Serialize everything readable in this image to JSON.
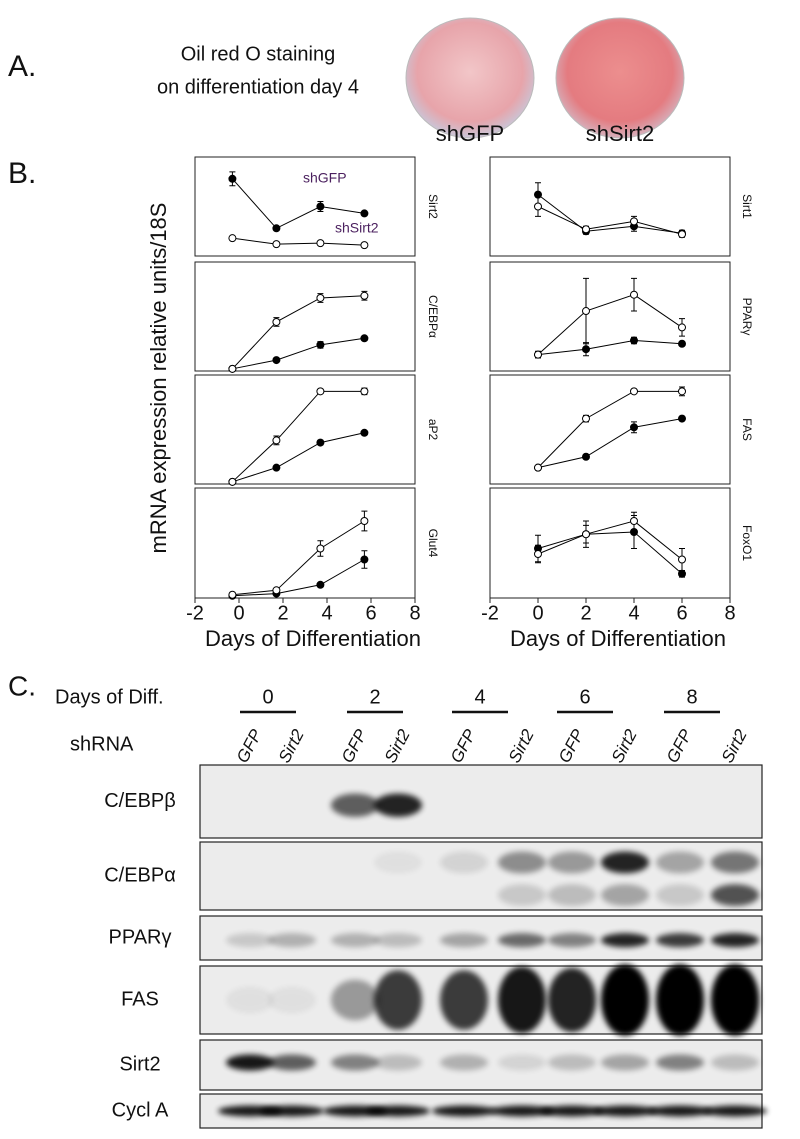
{
  "panel_a": {
    "letter": "A.",
    "caption_line1": "Oil red O staining",
    "caption_line2": "on differentiation day 4",
    "dishes": [
      "shGFP",
      "shSirt2"
    ]
  },
  "panel_b": {
    "letter": "B.",
    "y_label": "mRNA expression relative units/18S"
  },
  "chart_data": [
    {
      "type": "line",
      "title": "Sirt2",
      "x": [
        -0.3,
        1.7,
        3.7,
        5.7
      ],
      "xlim": [
        -2,
        8
      ],
      "ylim": [
        0,
        1
      ],
      "series": [
        {
          "name": "shGFP",
          "color": "#000000",
          "fill": "#000000",
          "values": [
            0.78,
            0.28,
            0.5,
            0.43
          ],
          "errors": [
            0.07,
            0.02,
            0.05,
            0.02
          ]
        },
        {
          "name": "shSirt2",
          "color": "#000000",
          "fill": "#ffffff",
          "values": [
            0.18,
            0.12,
            0.13,
            0.11
          ],
          "errors": [
            0.01,
            0.01,
            0.01,
            0.01
          ]
        }
      ]
    },
    {
      "type": "line",
      "title": "C/EBPα",
      "x": [
        -0.3,
        1.7,
        3.7,
        5.7
      ],
      "xlim": [
        -2,
        8
      ],
      "ylim": [
        0,
        1
      ],
      "series": [
        {
          "color": "#000000",
          "fill": "#000000",
          "values": [
            0.02,
            0.1,
            0.24,
            0.3
          ],
          "errors": [
            0.01,
            0.01,
            0.03,
            0.02
          ]
        },
        {
          "color": "#000000",
          "fill": "#ffffff",
          "values": [
            0.02,
            0.45,
            0.67,
            0.69
          ],
          "errors": [
            0.01,
            0.04,
            0.04,
            0.04
          ]
        }
      ]
    },
    {
      "type": "line",
      "title": "aP2",
      "x": [
        -0.3,
        1.7,
        3.7,
        5.7
      ],
      "xlim": [
        -2,
        8
      ],
      "ylim": [
        0,
        1
      ],
      "series": [
        {
          "color": "#000000",
          "fill": "#000000",
          "values": [
            0.02,
            0.15,
            0.38,
            0.47
          ],
          "errors": [
            0.01,
            0.01,
            0.02,
            0.02
          ]
        },
        {
          "color": "#000000",
          "fill": "#ffffff",
          "values": [
            0.02,
            0.4,
            0.85,
            0.85
          ],
          "errors": [
            0.01,
            0.04,
            0.02,
            0.03
          ]
        }
      ]
    },
    {
      "type": "line",
      "title": "Glut4",
      "x": [
        -0.3,
        1.7,
        3.7,
        5.7
      ],
      "xlim": [
        -2,
        8
      ],
      "ylim": [
        0,
        1
      ],
      "xticks": [
        -2,
        0,
        2,
        4,
        6,
        8
      ],
      "x_label": "Days of Differentiation",
      "series": [
        {
          "color": "#000000",
          "fill": "#000000",
          "values": [
            0.02,
            0.04,
            0.12,
            0.35
          ],
          "errors": [
            0.01,
            0.01,
            0.02,
            0.08
          ]
        },
        {
          "color": "#000000",
          "fill": "#ffffff",
          "values": [
            0.03,
            0.07,
            0.45,
            0.7
          ],
          "errors": [
            0.01,
            0.02,
            0.07,
            0.09
          ]
        }
      ]
    },
    {
      "type": "line",
      "title": "Sirt1",
      "x": [
        0,
        2,
        4,
        6
      ],
      "xlim": [
        -2,
        8
      ],
      "ylim": [
        0,
        1
      ],
      "series": [
        {
          "color": "#000000",
          "fill": "#000000",
          "values": [
            0.62,
            0.25,
            0.3,
            0.23
          ],
          "errors": [
            0.12,
            0.03,
            0.05,
            0.03
          ]
        },
        {
          "color": "#000000",
          "fill": "#ffffff",
          "values": [
            0.5,
            0.27,
            0.35,
            0.22
          ],
          "errors": [
            0.1,
            0.03,
            0.05,
            0.03
          ]
        }
      ]
    },
    {
      "type": "line",
      "title": "PPARγ",
      "x": [
        0,
        2,
        4,
        6
      ],
      "xlim": [
        -2,
        8
      ],
      "ylim": [
        0,
        1
      ],
      "series": [
        {
          "color": "#000000",
          "fill": "#000000",
          "values": [
            0.15,
            0.2,
            0.28,
            0.25
          ],
          "errors": [
            0.03,
            0.06,
            0.03,
            0.02
          ]
        },
        {
          "color": "#000000",
          "fill": "#ffffff",
          "values": [
            0.15,
            0.55,
            0.7,
            0.4
          ],
          "errors": [
            0.03,
            0.3,
            0.15,
            0.08
          ]
        }
      ]
    },
    {
      "type": "line",
      "title": "FAS",
      "x": [
        0,
        2,
        4,
        6
      ],
      "xlim": [
        -2,
        8
      ],
      "ylim": [
        0,
        1
      ],
      "series": [
        {
          "color": "#000000",
          "fill": "#000000",
          "values": [
            0.15,
            0.25,
            0.52,
            0.6
          ],
          "errors": [
            0.02,
            0.02,
            0.05,
            0.02
          ]
        },
        {
          "color": "#000000",
          "fill": "#ffffff",
          "values": [
            0.15,
            0.6,
            0.85,
            0.85
          ],
          "errors": [
            0.02,
            0.03,
            0.02,
            0.04
          ]
        }
      ]
    },
    {
      "type": "line",
      "title": "FoxO1",
      "x": [
        0,
        2,
        4,
        6
      ],
      "xlim": [
        -2,
        8
      ],
      "ylim": [
        0,
        1
      ],
      "xticks": [
        -2,
        0,
        2,
        4,
        6,
        8
      ],
      "x_label": "Days of Differentiation",
      "series": [
        {
          "color": "#000000",
          "fill": "#000000",
          "values": [
            0.45,
            0.58,
            0.6,
            0.22
          ],
          "errors": [
            0.12,
            0.08,
            0.15,
            0.03
          ]
        },
        {
          "color": "#000000",
          "fill": "#ffffff",
          "values": [
            0.4,
            0.58,
            0.7,
            0.35
          ],
          "errors": [
            0.08,
            0.12,
            0.08,
            0.1
          ]
        }
      ]
    }
  ],
  "panel_c": {
    "letter": "C.",
    "days_label": "Days of Diff.",
    "days": [
      "0",
      "2",
      "4",
      "6",
      "8"
    ],
    "shrna_label": "shRNA",
    "lanes": [
      "GFP",
      "Sirt2",
      "GFP",
      "Sirt2",
      "GFP",
      "Sirt2",
      "GFP",
      "Sirt2",
      "GFP",
      "Sirt2"
    ],
    "blots": [
      "C/EBPβ",
      "C/EBPα",
      "PPARγ",
      "FAS",
      "Sirt2",
      "Cycl A"
    ]
  }
}
